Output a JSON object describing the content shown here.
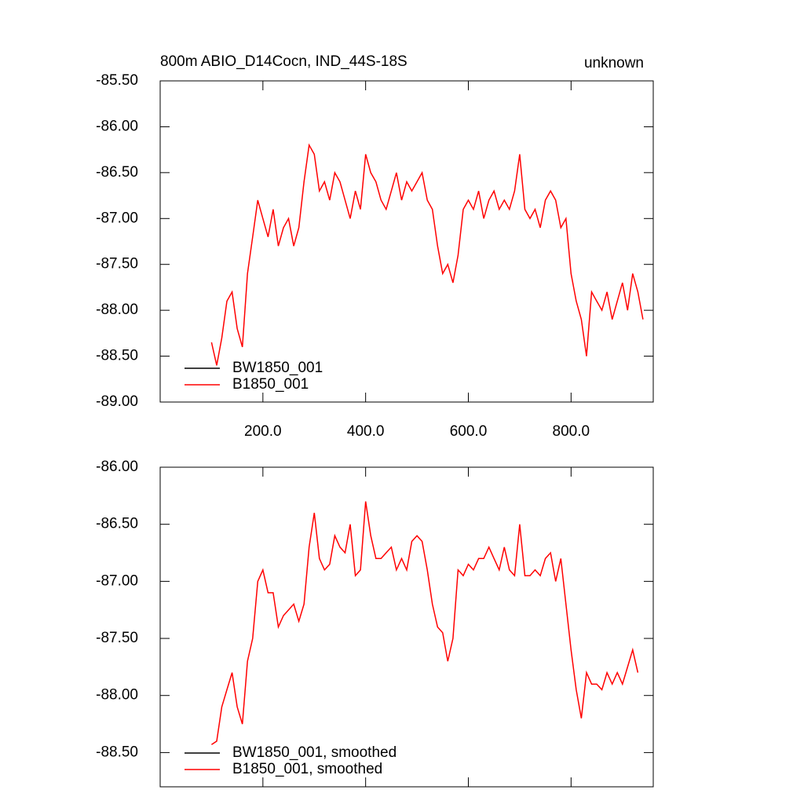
{
  "chart_data": [
    {
      "type": "line",
      "title": "800m ABIO_D14Cocn, IND_44S-18S",
      "right_title": "unknown",
      "x": [
        100,
        110,
        120,
        130,
        140,
        150,
        160,
        170,
        180,
        190,
        200,
        210,
        220,
        230,
        240,
        250,
        260,
        270,
        280,
        290,
        300,
        310,
        320,
        330,
        340,
        350,
        360,
        370,
        380,
        390,
        400,
        410,
        420,
        430,
        440,
        450,
        460,
        470,
        480,
        490,
        500,
        510,
        520,
        530,
        540,
        550,
        560,
        570,
        580,
        590,
        600,
        610,
        620,
        630,
        640,
        650,
        660,
        670,
        680,
        690,
        700,
        710,
        720,
        730,
        740,
        750,
        760,
        770,
        780,
        790,
        800,
        810,
        820,
        830,
        840,
        850,
        860,
        870,
        880,
        890,
        900,
        910,
        920,
        930,
        940
      ],
      "series": [
        {
          "name": "BW1850_001",
          "color": "#000000",
          "values": [
            null,
            null,
            null,
            null,
            null,
            null,
            null,
            null,
            null,
            null,
            null,
            null,
            null,
            null,
            null,
            null,
            null,
            null,
            null,
            null,
            null,
            null,
            null,
            null,
            null,
            null,
            null,
            null,
            null,
            null,
            null,
            null,
            null,
            null,
            null,
            null,
            null,
            null,
            null,
            null,
            null,
            null,
            null,
            null,
            null,
            null,
            null,
            null,
            null,
            null,
            null,
            null,
            null,
            null,
            null,
            null,
            null,
            null,
            null,
            null,
            null,
            null,
            null,
            null,
            null,
            null,
            null,
            null,
            null,
            null,
            null,
            null,
            null,
            null,
            null,
            null,
            null,
            null,
            null,
            null,
            null,
            null,
            null,
            null,
            null
          ]
        },
        {
          "name": "B1850_001",
          "color": "#ff0000",
          "values": [
            -88.35,
            -88.6,
            -88.3,
            -87.9,
            -87.8,
            -88.2,
            -88.4,
            -87.6,
            -87.2,
            -86.8,
            -87.0,
            -87.2,
            -86.9,
            -87.3,
            -87.1,
            -87.0,
            -87.3,
            -87.1,
            -86.6,
            -86.2,
            -86.3,
            -86.7,
            -86.6,
            -86.8,
            -86.5,
            -86.6,
            -86.8,
            -87.0,
            -86.7,
            -86.9,
            -86.3,
            -86.5,
            -86.6,
            -86.8,
            -86.9,
            -86.7,
            -86.5,
            -86.8,
            -86.6,
            -86.7,
            -86.6,
            -86.5,
            -86.8,
            -86.9,
            -87.3,
            -87.6,
            -87.5,
            -87.7,
            -87.4,
            -86.9,
            -86.8,
            -86.9,
            -86.7,
            -87.0,
            -86.8,
            -86.7,
            -86.9,
            -86.8,
            -86.9,
            -86.7,
            -86.3,
            -86.9,
            -87.0,
            -86.9,
            -87.1,
            -86.8,
            -86.7,
            -86.8,
            -87.1,
            -87.0,
            -87.6,
            -87.9,
            -88.1,
            -88.5,
            -87.8,
            -87.9,
            -88.0,
            -87.8,
            -88.1,
            -87.9,
            -87.7,
            -88.0,
            -87.6,
            -87.8,
            -88.1
          ]
        }
      ],
      "xlim": [
        0,
        960
      ],
      "ylim": [
        -89,
        -85.5
      ],
      "xticks": [
        {
          "value": 200,
          "label": "200.0"
        },
        {
          "value": 400,
          "label": "400.0"
        },
        {
          "value": 600,
          "label": "600.0"
        },
        {
          "value": 800,
          "label": "800.0"
        }
      ],
      "yticks": [
        {
          "value": -85.5,
          "label": "-85.50"
        },
        {
          "value": -86,
          "label": "-86.00"
        },
        {
          "value": -86.5,
          "label": "-86.50"
        },
        {
          "value": -87,
          "label": "-87.00"
        },
        {
          "value": -87.5,
          "label": "-87.50"
        },
        {
          "value": -88,
          "label": "-88.00"
        },
        {
          "value": -88.5,
          "label": "-88.50"
        },
        {
          "value": -89,
          "label": "-89.00"
        }
      ],
      "xtick_labels": true,
      "legend": "lower left"
    },
    {
      "type": "line",
      "x": [
        100,
        110,
        120,
        130,
        140,
        150,
        160,
        170,
        180,
        190,
        200,
        210,
        220,
        230,
        240,
        250,
        260,
        270,
        280,
        290,
        300,
        310,
        320,
        330,
        340,
        350,
        360,
        370,
        380,
        390,
        400,
        410,
        420,
        430,
        440,
        450,
        460,
        470,
        480,
        490,
        500,
        510,
        520,
        530,
        540,
        550,
        560,
        570,
        580,
        590,
        600,
        610,
        620,
        630,
        640,
        650,
        660,
        670,
        680,
        690,
        700,
        710,
        720,
        730,
        740,
        750,
        760,
        770,
        780,
        790,
        800,
        810,
        820,
        830,
        840,
        850,
        860,
        870,
        880,
        890,
        900,
        910,
        920,
        930
      ],
      "series": [
        {
          "name": "BW1850_001, smoothed",
          "color": "#000000",
          "values": [
            null,
            null,
            null,
            null,
            null,
            null,
            null,
            null,
            null,
            null,
            null,
            null,
            null,
            null,
            null,
            null,
            null,
            null,
            null,
            null,
            null,
            null,
            null,
            null,
            null,
            null,
            null,
            null,
            null,
            null,
            null,
            null,
            null,
            null,
            null,
            null,
            null,
            null,
            null,
            null,
            null,
            null,
            null,
            null,
            null,
            null,
            null,
            null,
            null,
            null,
            null,
            null,
            null,
            null,
            null,
            null,
            null,
            null,
            null,
            null,
            null,
            null,
            null,
            null,
            null,
            null,
            null,
            null,
            null,
            null,
            null,
            null,
            null,
            null,
            null,
            null,
            null,
            null,
            null,
            null,
            null,
            null,
            null,
            null
          ]
        },
        {
          "name": "B1850_001, smoothed",
          "color": "#ff0000",
          "values": [
            -88.43,
            -88.4,
            -88.1,
            -87.95,
            -87.8,
            -88.1,
            -88.25,
            -87.7,
            -87.5,
            -87.0,
            -86.9,
            -87.1,
            -87.1,
            -87.4,
            -87.3,
            -87.25,
            -87.2,
            -87.35,
            -87.2,
            -86.7,
            -86.4,
            -86.8,
            -86.9,
            -86.85,
            -86.6,
            -86.7,
            -86.75,
            -86.5,
            -86.95,
            -86.9,
            -86.3,
            -86.6,
            -86.8,
            -86.8,
            -86.75,
            -86.7,
            -86.9,
            -86.8,
            -86.9,
            -86.65,
            -86.6,
            -86.65,
            -86.9,
            -87.2,
            -87.4,
            -87.45,
            -87.7,
            -87.5,
            -86.9,
            -86.95,
            -86.85,
            -86.9,
            -86.8,
            -86.8,
            -86.7,
            -86.8,
            -86.9,
            -86.7,
            -86.9,
            -86.95,
            -86.5,
            -86.95,
            -86.95,
            -86.9,
            -86.95,
            -86.8,
            -86.75,
            -87.0,
            -86.8,
            -87.2,
            -87.6,
            -87.95,
            -88.2,
            -87.8,
            -87.9,
            -87.9,
            -87.95,
            -87.8,
            -87.9,
            -87.8,
            -87.9,
            -87.75,
            -87.6,
            -87.8
          ]
        }
      ],
      "xlim": [
        0,
        960
      ],
      "ylim": [
        -88.8,
        -86
      ],
      "xticks": [
        200,
        400,
        600,
        800
      ],
      "yticks": [
        {
          "value": -86,
          "label": "-86.00"
        },
        {
          "value": -86.5,
          "label": "-86.50"
        },
        {
          "value": -87,
          "label": "-87.00"
        },
        {
          "value": -87.5,
          "label": "-87.50"
        },
        {
          "value": -88,
          "label": "-88.00"
        },
        {
          "value": -88.5,
          "label": "-88.50"
        }
      ],
      "xtick_labels": false,
      "legend": "lower left"
    }
  ]
}
